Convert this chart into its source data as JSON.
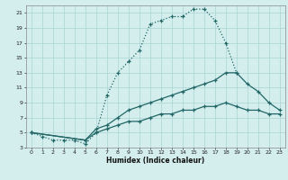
{
  "title": "",
  "xlabel": "Humidex (Indice chaleur)",
  "bg_color": "#d4eeee",
  "grid_color": "#aad4d4",
  "line_color": "#226666",
  "xlim": [
    -0.5,
    23.5
  ],
  "ylim": [
    3,
    22
  ],
  "xticks": [
    0,
    1,
    2,
    3,
    4,
    5,
    6,
    7,
    8,
    9,
    10,
    11,
    12,
    13,
    14,
    15,
    16,
    17,
    18,
    19,
    20,
    21,
    22,
    23
  ],
  "yticks": [
    3,
    5,
    7,
    9,
    11,
    13,
    15,
    17,
    19,
    21
  ],
  "line1_x": [
    0,
    1,
    2,
    3,
    4,
    5,
    6,
    7,
    8,
    9,
    10,
    11,
    12,
    13,
    14,
    15,
    16,
    17,
    18,
    19
  ],
  "line1_y": [
    5,
    4.5,
    4,
    4,
    4,
    3.5,
    5,
    10,
    13,
    14.5,
    16,
    19.5,
    20,
    20.5,
    20.5,
    21.5,
    21.5,
    20,
    17,
    13
  ],
  "line2_x": [
    0,
    5,
    6,
    7,
    8,
    9,
    10,
    11,
    12,
    13,
    14,
    15,
    16,
    17,
    18,
    19,
    20,
    21,
    22,
    23
  ],
  "line2_y": [
    5,
    4,
    5.5,
    6,
    7,
    8,
    8.5,
    9,
    9.5,
    10,
    10.5,
    11,
    11.5,
    12,
    13,
    13,
    11.5,
    10.5,
    9,
    8
  ],
  "line3_x": [
    0,
    5,
    6,
    7,
    8,
    9,
    10,
    11,
    12,
    13,
    14,
    15,
    16,
    17,
    18,
    19,
    20,
    21,
    22,
    23
  ],
  "line3_y": [
    5,
    4,
    5,
    5.5,
    6,
    6.5,
    6.5,
    7,
    7.5,
    7.5,
    8,
    8,
    8.5,
    8.5,
    9,
    8.5,
    8,
    8,
    7.5,
    7.5
  ]
}
